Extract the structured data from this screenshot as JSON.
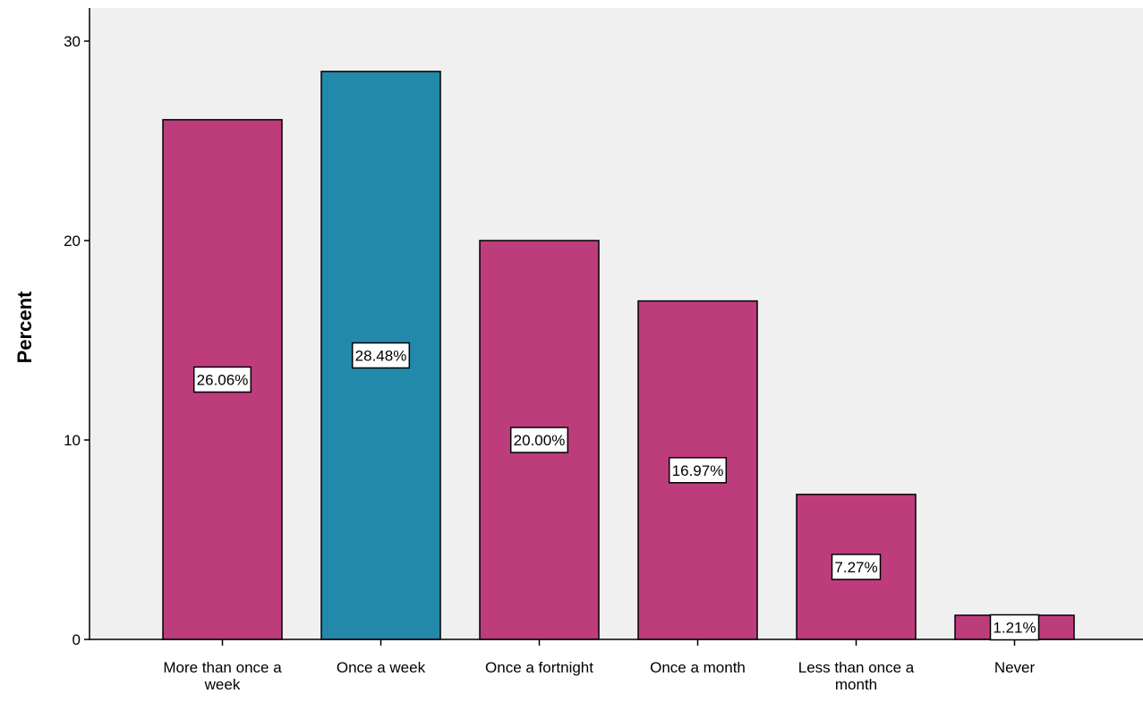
{
  "chart_data": {
    "type": "bar",
    "categories": [
      [
        "More than once a",
        "week"
      ],
      [
        "Once a week"
      ],
      [
        "Once a fortnight"
      ],
      [
        "Once a month"
      ],
      [
        "Less than once a",
        "month"
      ],
      [
        "Never"
      ]
    ],
    "values": [
      26.06,
      28.48,
      20.0,
      16.97,
      7.27,
      1.21
    ],
    "data_labels": [
      "26.06%",
      "28.48%",
      "20.00%",
      "16.97%",
      "7.27%",
      "1.21%"
    ],
    "bar_colors": [
      "#bd3d7c",
      "#2389ab",
      "#bd3d7c",
      "#bd3d7c",
      "#bd3d7c",
      "#bd3d7c"
    ],
    "ylabel": "Percent",
    "xlabel": "",
    "title": "",
    "ylim": [
      0,
      30
    ],
    "yticks": [
      0,
      10,
      20,
      30
    ],
    "plot_background": "#f0f0f0",
    "grid": false
  }
}
